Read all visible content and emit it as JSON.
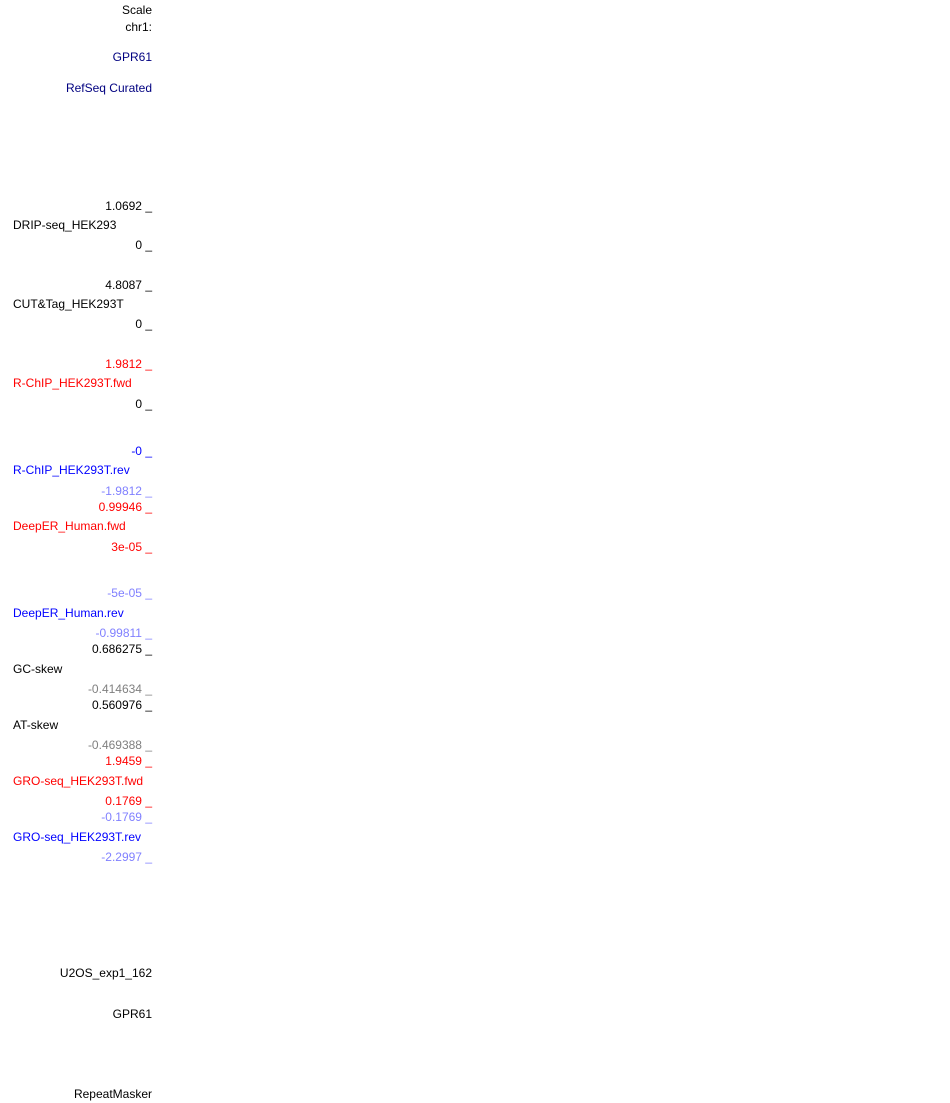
{
  "colors": {
    "black": "#000000",
    "navy": "#000080",
    "red": "#ff0000",
    "blue": "#0000ff",
    "light_blue": "#8080ff",
    "gray": "#808080"
  },
  "header": {
    "scale": "Scale",
    "chrom": "chr1:",
    "gene": "GPR61",
    "refseq": "RefSeq Curated"
  },
  "tracks": {
    "drip": {
      "max": "1.0692 _",
      "name": "DRIP-seq_HEK293",
      "min": "0 _"
    },
    "cuttag": {
      "max": "4.8087 _",
      "name": "CUT&Tag_HEK293T",
      "min": "0 _"
    },
    "rchip_fwd": {
      "max": "1.9812 _",
      "name": "R-ChIP_HEK293T.fwd",
      "min": "0 _"
    },
    "rchip_rev": {
      "max": "-0 _",
      "name": "R-ChIP_HEK293T.rev",
      "min": "-1.9812 _"
    },
    "deeper_fwd": {
      "max": "0.99946 _",
      "name": "DeepER_Human.fwd",
      "min": "3e-05 _"
    },
    "deeper_rev": {
      "max": "-5e-05 _",
      "name": "DeepER_Human.rev",
      "min": "-0.99811 _"
    },
    "gc_skew": {
      "max": "0.686275 _",
      "name": "GC-skew",
      "min": "-0.414634 _"
    },
    "at_skew": {
      "max": "0.560976 _",
      "name": "AT-skew",
      "min": "-0.469388 _"
    },
    "gro_fwd": {
      "max": "1.9459 _",
      "name": "GRO-seq_HEK293T.fwd",
      "min": "0.1769 _"
    },
    "gro_rev": {
      "max": "-0.1769 _",
      "name": "GRO-seq_HEK293T.rev",
      "min": "-2.2997 _"
    }
  },
  "footer": {
    "u2os": "U2OS_exp1_162",
    "gene": "GPR61",
    "repeatmasker": "RepeatMasker"
  }
}
